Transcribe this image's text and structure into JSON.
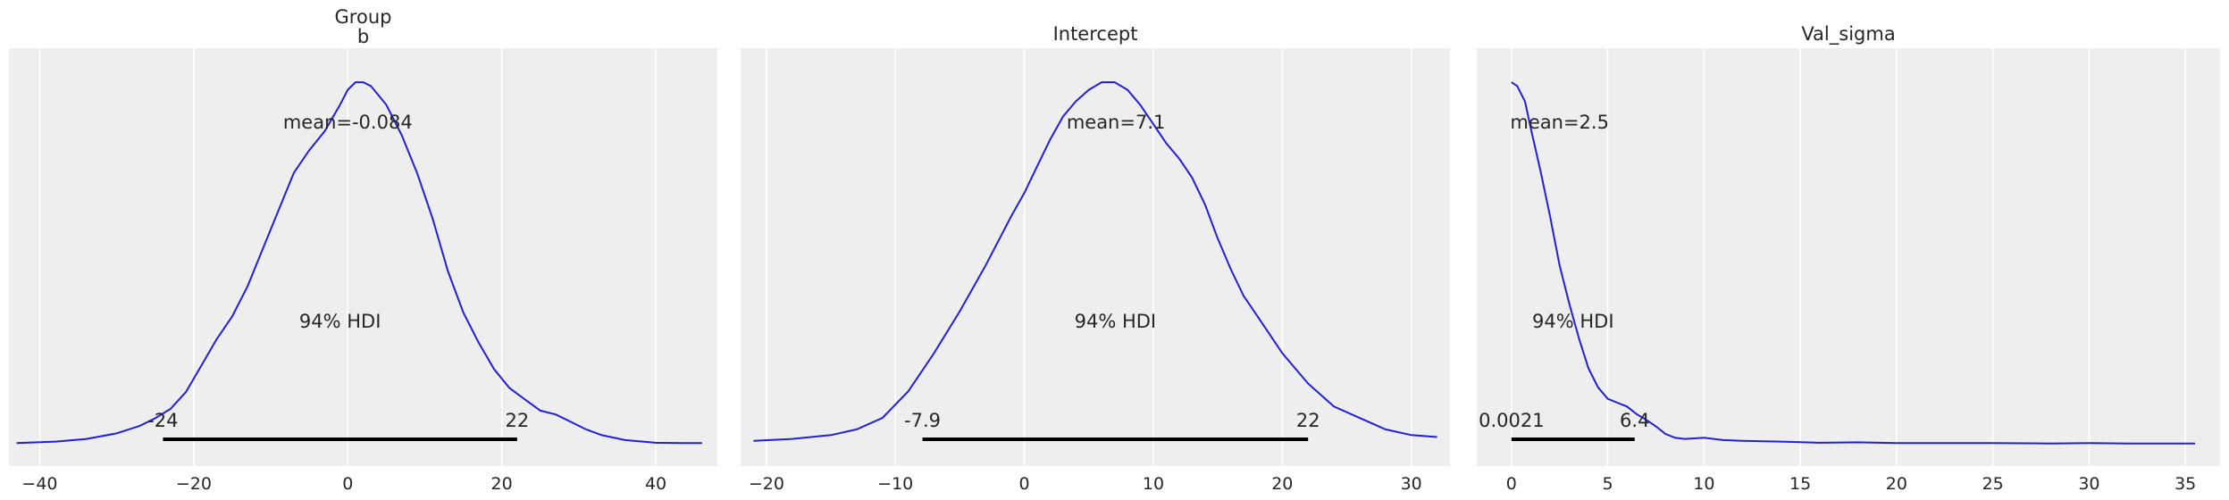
{
  "chart_data": [
    {
      "type": "line",
      "title": "Group\nb",
      "xlim": [
        -44,
        48
      ],
      "xticks": [
        -40,
        -20,
        0,
        20,
        40
      ],
      "grid": true,
      "mean_label": "mean=-0.084",
      "hdi_label": "94% HDI",
      "hdi": [
        -24,
        22
      ],
      "hdi_low_label": "-24",
      "hdi_high_label": "22",
      "density_x": [
        -43,
        -38,
        -34,
        -30,
        -27,
        -25,
        -23,
        -21,
        -19,
        -17,
        -15,
        -13,
        -11,
        -9,
        -7,
        -5,
        -3,
        -1,
        0,
        1,
        2,
        3,
        5,
        7,
        9,
        11,
        13,
        15,
        17,
        19,
        21,
        23,
        25,
        27,
        29,
        31,
        33,
        36,
        40,
        44,
        46
      ],
      "density_y": [
        0.004,
        0.008,
        0.015,
        0.03,
        0.05,
        0.07,
        0.095,
        0.14,
        0.21,
        0.28,
        0.34,
        0.42,
        0.52,
        0.62,
        0.72,
        0.78,
        0.83,
        0.9,
        0.94,
        0.96,
        0.96,
        0.95,
        0.9,
        0.82,
        0.72,
        0.6,
        0.46,
        0.35,
        0.27,
        0.2,
        0.15,
        0.12,
        0.09,
        0.08,
        0.06,
        0.04,
        0.025,
        0.012,
        0.005,
        0.004,
        0.004
      ]
    },
    {
      "type": "line",
      "title": "Intercept",
      "xlim": [
        -22,
        33
      ],
      "xticks": [
        -20,
        -10,
        0,
        10,
        20,
        30
      ],
      "grid": true,
      "mean_label": "mean=7.1",
      "hdi_label": "94% HDI",
      "hdi": [
        -7.9,
        22
      ],
      "hdi_low_label": "-7.9",
      "hdi_high_label": "22",
      "density_x": [
        -21,
        -18,
        -15,
        -13,
        -11,
        -9,
        -7,
        -5,
        -3,
        -1,
        0,
        1,
        2,
        3,
        4,
        5,
        6,
        7,
        8,
        9,
        10,
        11,
        12,
        13,
        14,
        15,
        16,
        17,
        18,
        19,
        20,
        22,
        24,
        26,
        28,
        30,
        32
      ],
      "density_y": [
        0.01,
        0.015,
        0.025,
        0.04,
        0.07,
        0.14,
        0.24,
        0.35,
        0.47,
        0.6,
        0.66,
        0.73,
        0.8,
        0.86,
        0.9,
        0.93,
        0.95,
        0.95,
        0.93,
        0.89,
        0.84,
        0.79,
        0.75,
        0.7,
        0.63,
        0.54,
        0.46,
        0.39,
        0.34,
        0.29,
        0.24,
        0.16,
        0.1,
        0.07,
        0.04,
        0.025,
        0.02
      ]
    },
    {
      "type": "line",
      "title": "Val_sigma",
      "xlim": [
        -1.8,
        36.8
      ],
      "xticks": [
        0,
        5,
        10,
        15,
        20,
        25,
        30,
        35
      ],
      "grid": true,
      "mean_label": "mean=2.5",
      "hdi_label": "94% HDI",
      "hdi": [
        0.0021,
        6.4
      ],
      "hdi_low_label": "0.0021",
      "hdi_high_label": "6.4",
      "density_x": [
        0,
        0.3,
        0.7,
        1,
        1.5,
        2,
        2.5,
        3,
        3.5,
        4,
        4.5,
        5,
        5.5,
        6,
        6.5,
        7,
        7.5,
        8,
        8.5,
        9,
        10,
        11,
        12,
        14,
        16,
        18,
        20,
        22,
        25,
        28,
        30,
        32,
        35.5
      ],
      "density_y": [
        0.95,
        0.94,
        0.9,
        0.83,
        0.72,
        0.6,
        0.47,
        0.37,
        0.28,
        0.2,
        0.15,
        0.12,
        0.11,
        0.1,
        0.08,
        0.065,
        0.048,
        0.028,
        0.018,
        0.015,
        0.018,
        0.012,
        0.01,
        0.008,
        0.005,
        0.006,
        0.004,
        0.004,
        0.004,
        0.003,
        0.004,
        0.003,
        0.003
      ]
    }
  ],
  "colors": {
    "background": "#ffffff",
    "panel": "#eeeeee",
    "grid": "#ffffff",
    "line": "#1f1fdc",
    "hdi": "#000000",
    "text": "#262626"
  }
}
